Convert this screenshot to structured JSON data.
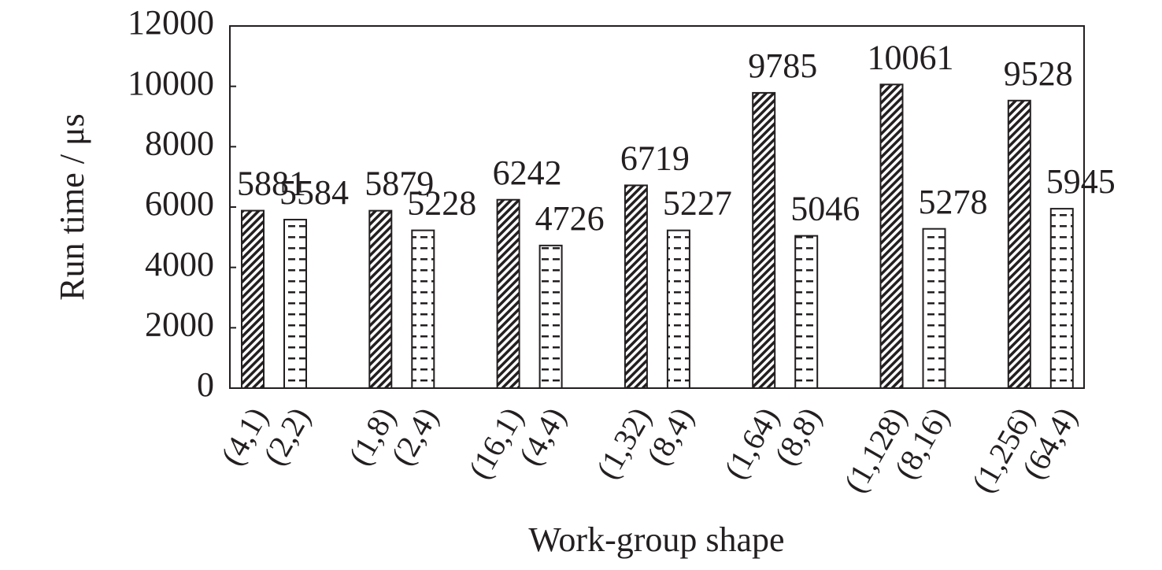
{
  "chart_data": {
    "type": "bar",
    "y_label": "Run time / μs",
    "x_label": "Work-group  shape",
    "categories": [
      "(4,1)",
      "(2,2)",
      "(1,8)",
      "(2,4)",
      "(16,1)",
      "(4,4)",
      "(1,32)",
      "(8,4)",
      "(1,64)",
      "(8,8)",
      "(1,128)",
      "(8,16)",
      "(1,256)",
      "(64,4)"
    ],
    "values": [
      5881,
      5584,
      5879,
      5228,
      6242,
      4726,
      6719,
      5227,
      9785,
      5046,
      10061,
      5278,
      9528,
      5945
    ],
    "patterns": [
      "diagonal",
      "dashed",
      "diagonal",
      "dashed",
      "diagonal",
      "dashed",
      "diagonal",
      "dashed",
      "diagonal",
      "dashed",
      "diagonal",
      "dashed",
      "diagonal",
      "dashed"
    ],
    "color": "#231f20",
    "ylim": [
      0,
      12000
    ],
    "yticks": [
      0,
      2000,
      4000,
      6000,
      8000,
      10000,
      12000
    ],
    "grid": false
  }
}
